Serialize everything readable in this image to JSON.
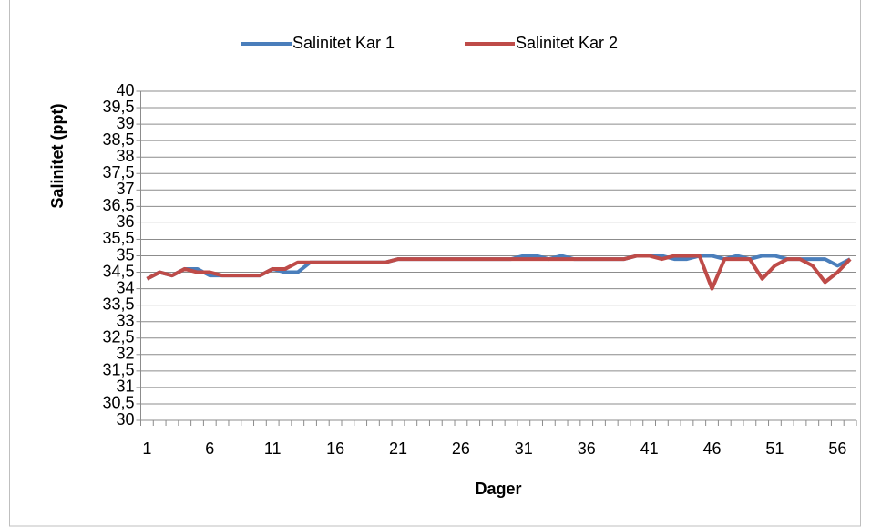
{
  "chart_data": {
    "type": "line",
    "y_label": "Salinitet (ppt)",
    "x_label": "Dager",
    "categories": [
      "1",
      null,
      null,
      null,
      null,
      "6",
      null,
      null,
      null,
      null,
      "11",
      null,
      null,
      null,
      null,
      "16",
      null,
      null,
      null,
      null,
      "21",
      null,
      null,
      null,
      null,
      "26",
      null,
      null,
      null,
      null,
      "31",
      null,
      null,
      null,
      null,
      "36",
      null,
      null,
      null,
      null,
      "41",
      null,
      null,
      null,
      null,
      "46",
      null,
      null,
      null,
      null,
      "51",
      null,
      null,
      null,
      null,
      "56",
      null
    ],
    "series": [
      {
        "name": "Salinitet Kar 1",
        "color": "#4a7ebb",
        "values": [
          34.3,
          34.5,
          34.4,
          34.6,
          34.6,
          34.4,
          34.4,
          34.4,
          34.4,
          34.4,
          34.6,
          34.5,
          34.5,
          34.8,
          34.8,
          34.8,
          34.8,
          34.8,
          34.8,
          34.8,
          34.9,
          34.9,
          34.9,
          34.9,
          34.9,
          34.9,
          34.9,
          34.9,
          34.9,
          34.9,
          35,
          35,
          34.9,
          35,
          34.9,
          34.9,
          34.9,
          34.9,
          34.9,
          35,
          35,
          35,
          34.9,
          34.9,
          35,
          35,
          34.9,
          35,
          34.9,
          35,
          35,
          34.9,
          34.9,
          34.9,
          34.9,
          34.7,
          34.9
        ]
      },
      {
        "name": "Salinitet Kar 2",
        "color": "#be4b48",
        "values": [
          34.3,
          34.5,
          34.4,
          34.6,
          34.5,
          34.5,
          34.4,
          34.4,
          34.4,
          34.4,
          34.6,
          34.6,
          34.8,
          34.8,
          34.8,
          34.8,
          34.8,
          34.8,
          34.8,
          34.8,
          34.9,
          34.9,
          34.9,
          34.9,
          34.9,
          34.9,
          34.9,
          34.9,
          34.9,
          34.9,
          34.9,
          34.9,
          34.9,
          34.9,
          34.9,
          34.9,
          34.9,
          34.9,
          34.9,
          35,
          35,
          34.9,
          35,
          35,
          35,
          34,
          34.9,
          34.9,
          34.9,
          34.3,
          34.7,
          34.9,
          34.9,
          34.7,
          34.2,
          34.5,
          34.9
        ]
      }
    ],
    "ylim": [
      30,
      40
    ],
    "yticks": [
      30,
      {
        "value": 30.5,
        "label": "30,5"
      },
      31,
      {
        "value": 31.5,
        "label": "31,5"
      },
      32,
      {
        "value": 32.5,
        "label": "32,5"
      },
      33,
      {
        "value": 33.5,
        "label": "33,5"
      },
      34,
      {
        "value": 34.5,
        "label": "34,5"
      },
      35,
      {
        "value": 35.5,
        "label": "35,5"
      },
      36,
      {
        "value": 36.5,
        "label": "36,5"
      },
      37,
      {
        "value": 37.5,
        "label": "37,5"
      },
      38,
      {
        "value": 38.5,
        "label": "38,5"
      },
      39,
      {
        "value": 39.5,
        "label": "39,5"
      },
      40
    ],
    "grid": true,
    "legend": "top"
  }
}
